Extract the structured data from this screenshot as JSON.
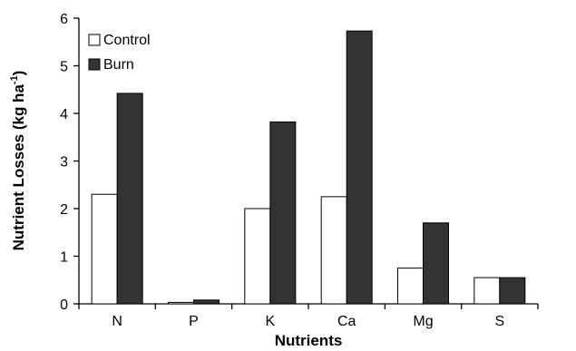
{
  "chart_data": {
    "type": "bar",
    "xlabel": "Nutrients",
    "ylabel_main": "Nutrient Losses (kg ha",
    "ylabel_superscript": "-1",
    "ylabel_close": ")",
    "categories": [
      "N",
      "P",
      "K",
      "Ca",
      "Mg",
      "S"
    ],
    "series": [
      {
        "name": "Control",
        "values": [
          2.3,
          0.03,
          2.0,
          2.25,
          0.75,
          0.55
        ],
        "fill": "#ffffff",
        "stroke": "#000000"
      },
      {
        "name": "Burn",
        "values": [
          4.42,
          0.08,
          3.82,
          5.73,
          1.7,
          0.55
        ],
        "fill": "#333333",
        "stroke": "#000000"
      }
    ],
    "ylim": [
      0,
      6
    ],
    "yticks": [
      0,
      1,
      2,
      3,
      4,
      5,
      6
    ],
    "grid": false,
    "legend_position": "top-left"
  }
}
